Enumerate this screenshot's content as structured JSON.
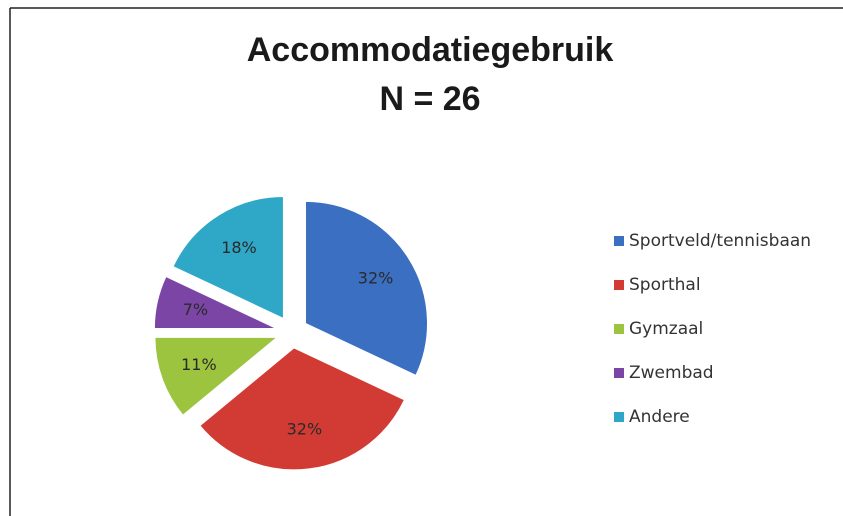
{
  "chart_data": {
    "type": "pie",
    "title": "Accommodatiegebruik",
    "subtitle": "N = 26",
    "categories": [
      "Sportveld/tennisbaan",
      "Sporthal",
      "Gymzaal",
      "Zwembad",
      "Andere"
    ],
    "values": [
      32,
      32,
      11,
      7,
      18
    ],
    "value_labels": [
      "32%",
      "32%",
      "11%",
      "7%",
      "18%"
    ],
    "colors": [
      "#3b6fc2",
      "#d23b34",
      "#9cc43e",
      "#7b45a6",
      "#2fa8c8"
    ],
    "legend": "right"
  }
}
